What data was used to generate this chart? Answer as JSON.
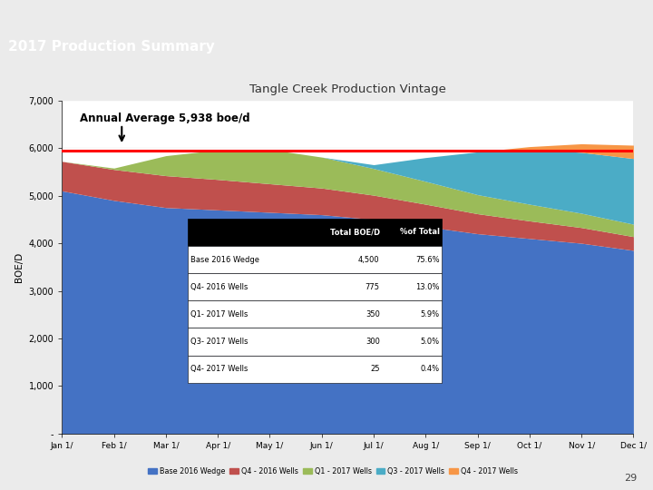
{
  "title": "Tangle Creek Production Vintage",
  "slide_title": "2017 Production Summary",
  "annual_avg_label": "Annual Average 5,938 boe/d",
  "annual_avg_value": 5938,
  "ylabel": "BOE/D",
  "months": [
    "Jan 1/",
    "Feb 1/",
    "Mar 1/",
    "Apr 1/",
    "May 1/",
    "Jun 1/",
    "Jul 1/",
    "Aug 1/",
    "Sep 1/",
    "Oct 1/",
    "Nov 1/",
    "Dec 1/"
  ],
  "series": {
    "Base 2016 Wedge": {
      "color": "#4472C4",
      "values": [
        5100,
        4900,
        4750,
        4700,
        4650,
        4600,
        4500,
        4350,
        4200,
        4100,
        4000,
        3850
      ]
    },
    "Q4 - 2016 Wells": {
      "color": "#C0504D",
      "values": [
        620,
        650,
        670,
        640,
        600,
        560,
        510,
        470,
        420,
        370,
        330,
        290
      ]
    },
    "Q1 - 2017 Wells": {
      "color": "#9BBB59",
      "values": [
        0,
        30,
        420,
        620,
        720,
        650,
        560,
        480,
        400,
        350,
        300,
        260
      ]
    },
    "Q3 - 2017 Wells": {
      "color": "#4BACC6",
      "values": [
        0,
        0,
        0,
        0,
        0,
        0,
        80,
        500,
        900,
        1150,
        1280,
        1380
      ]
    },
    "Q4 - 2017 Wells": {
      "color": "#F79646",
      "values": [
        0,
        0,
        0,
        0,
        0,
        0,
        0,
        0,
        0,
        60,
        180,
        280
      ]
    }
  },
  "table_data": [
    [
      "Base 2016 Wedge",
      "4,500",
      "75.6%"
    ],
    [
      "Q4- 2016 Wells",
      "775",
      "13.0%"
    ],
    [
      "Q1- 2017 Wells",
      "350",
      "5.9%"
    ],
    [
      "Q3- 2017 Wells",
      "300",
      "5.0%"
    ],
    [
      "Q4- 2017 Wells",
      "25",
      "0.4%"
    ]
  ],
  "table_headers": [
    "",
    "Total BOE/D",
    "%of Total"
  ],
  "ylim": [
    0,
    7000
  ],
  "yticks": [
    0,
    1000,
    2000,
    3000,
    4000,
    5000,
    6000,
    7000
  ],
  "ytick_labels": [
    "-",
    "1,000",
    "2,000",
    "3,000",
    "4,000",
    "5,000",
    "6,000",
    "7,000"
  ],
  "fig_bg": "#EBEBEB",
  "chart_bg": "#FFFFFF",
  "slide_area_bg": "#FFFFFF",
  "header_color": "#1A1A1A",
  "sep_color1": "#C8A96E",
  "sep_color2": "#8CA0B8",
  "red_line_color": "#FF0000",
  "page_num": "29"
}
